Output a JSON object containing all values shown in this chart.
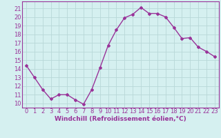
{
  "x": [
    0,
    1,
    2,
    3,
    4,
    5,
    6,
    7,
    8,
    9,
    10,
    11,
    12,
    13,
    14,
    15,
    16,
    17,
    18,
    19,
    20,
    21,
    22,
    23
  ],
  "y": [
    14.4,
    13.0,
    11.6,
    10.5,
    11.0,
    11.0,
    10.4,
    9.9,
    11.6,
    14.1,
    16.7,
    18.5,
    19.9,
    20.3,
    21.1,
    20.4,
    20.4,
    20.0,
    18.8,
    17.5,
    17.6,
    16.5,
    16.0,
    15.4
  ],
  "line_color": "#993399",
  "marker": "D",
  "marker_size": 2.0,
  "linewidth": 1.0,
  "bg_color": "#d5f0f0",
  "grid_color": "#b8d8d8",
  "xlabel": "Windchill (Refroidissement éolien,°C)",
  "xlabel_fontsize": 6.5,
  "xtick_labels": [
    "0",
    "1",
    "2",
    "3",
    "4",
    "5",
    "6",
    "7",
    "8",
    "9",
    "10",
    "11",
    "12",
    "13",
    "14",
    "15",
    "16",
    "17",
    "18",
    "19",
    "20",
    "21",
    "22",
    "23"
  ],
  "ytick_values": [
    10,
    11,
    12,
    13,
    14,
    15,
    16,
    17,
    18,
    19,
    20,
    21
  ],
  "ylim": [
    9.5,
    21.8
  ],
  "xlim": [
    -0.5,
    23.5
  ],
  "tick_fontsize": 6.0
}
